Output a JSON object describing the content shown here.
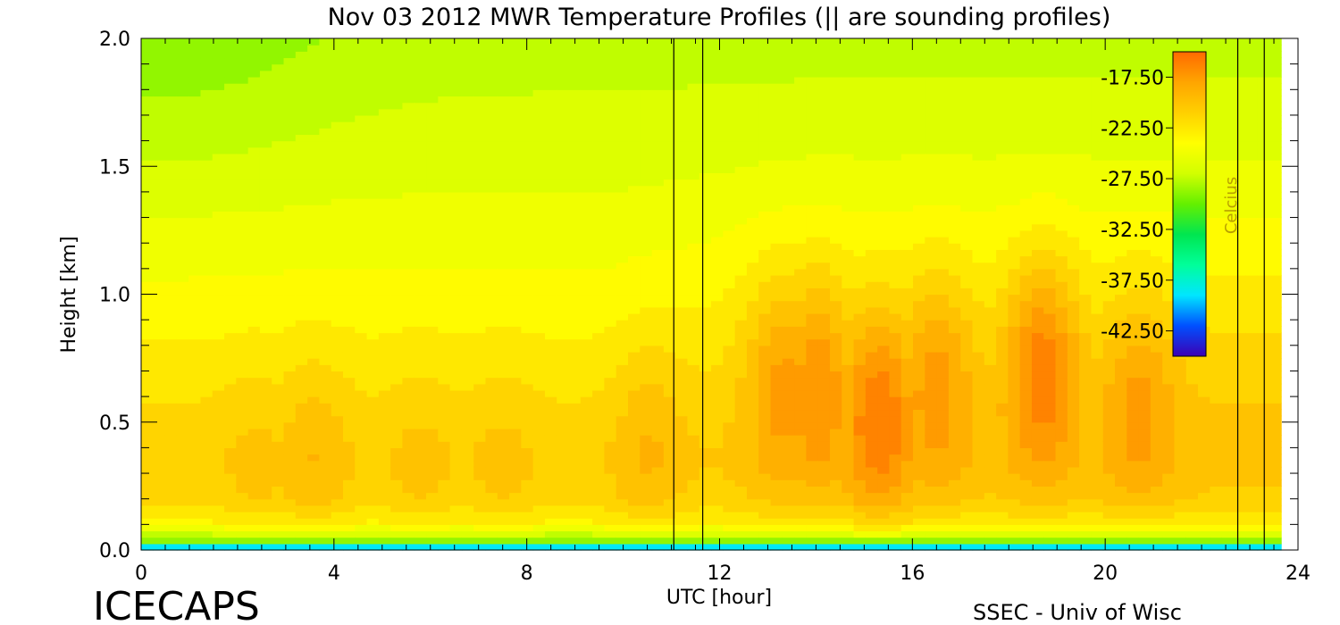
{
  "chart_data": {
    "type": "heatmap",
    "title": "Nov 03 2012 MWR Temperature Profiles (|| are sounding profiles)",
    "xlabel": "UTC [hour]",
    "ylabel": "Height [km]",
    "xlim": [
      0,
      24
    ],
    "ylim": [
      0,
      2.0
    ],
    "x_ticks": [
      "0",
      "4",
      "8",
      "12",
      "16",
      "20",
      "24"
    ],
    "y_ticks": [
      "0.0",
      "0.5",
      "1.0",
      "1.5",
      "2.0"
    ],
    "x_minor_step": 0.5,
    "y_minor_step": 0.1,
    "colorbar": {
      "label": "Celcius",
      "range": [
        -45,
        -15
      ],
      "ticks": [
        "-17.50",
        "-22.50",
        "-27.50",
        "-32.50",
        "-37.50",
        "-42.50"
      ],
      "colormap": [
        "#3c00b4",
        "#0050ff",
        "#00e6ff",
        "#00ff9a",
        "#00e650",
        "#64f000",
        "#d2ff00",
        "#ffff00",
        "#ffd000",
        "#ffa500",
        "#ff6a00"
      ]
    },
    "sounding_times": [
      11.05,
      11.65,
      22.75,
      23.3
    ],
    "data_end_hour": 23.65,
    "temperature_field": {
      "base_profile": [
        {
          "height_km": 0.0,
          "celsius": -44.0
        },
        {
          "height_km": 0.03,
          "celsius": -30.0
        },
        {
          "height_km": 0.1,
          "celsius": -23.5
        },
        {
          "height_km": 0.2,
          "celsius": -21.5
        },
        {
          "height_km": 0.35,
          "celsius": -21.0
        },
        {
          "height_km": 0.6,
          "celsius": -22.0
        },
        {
          "height_km": 1.0,
          "celsius": -24.0
        },
        {
          "height_km": 1.5,
          "celsius": -26.0
        },
        {
          "height_km": 2.0,
          "celsius": -27.5
        }
      ],
      "warm_cores": [
        {
          "hour": 2.4,
          "height_km": 0.35,
          "celsius": -20.0
        },
        {
          "hour": 3.6,
          "height_km": 0.4,
          "celsius": -19.5
        },
        {
          "hour": 5.8,
          "height_km": 0.35,
          "celsius": -20.0
        },
        {
          "hour": 7.5,
          "height_km": 0.35,
          "celsius": -20.0
        },
        {
          "hour": 10.5,
          "height_km": 0.45,
          "celsius": -19.5
        },
        {
          "hour": 13.3,
          "height_km": 0.7,
          "celsius": -19.0
        },
        {
          "hour": 14.0,
          "height_km": 0.7,
          "celsius": -18.5
        },
        {
          "hour": 15.3,
          "height_km": 0.55,
          "celsius": -17.0
        },
        {
          "hour": 16.5,
          "height_km": 0.7,
          "celsius": -19.0
        },
        {
          "hour": 18.7,
          "height_km": 0.75,
          "celsius": -17.5
        },
        {
          "hour": 20.7,
          "height_km": 0.6,
          "celsius": -19.0
        }
      ],
      "coldest_region": {
        "hour": 0.5,
        "height_km": 2.0,
        "celsius": -29.0
      }
    }
  },
  "footer": {
    "left_text": "ICECAPS",
    "right_text": "SSEC - Univ of Wisc"
  }
}
